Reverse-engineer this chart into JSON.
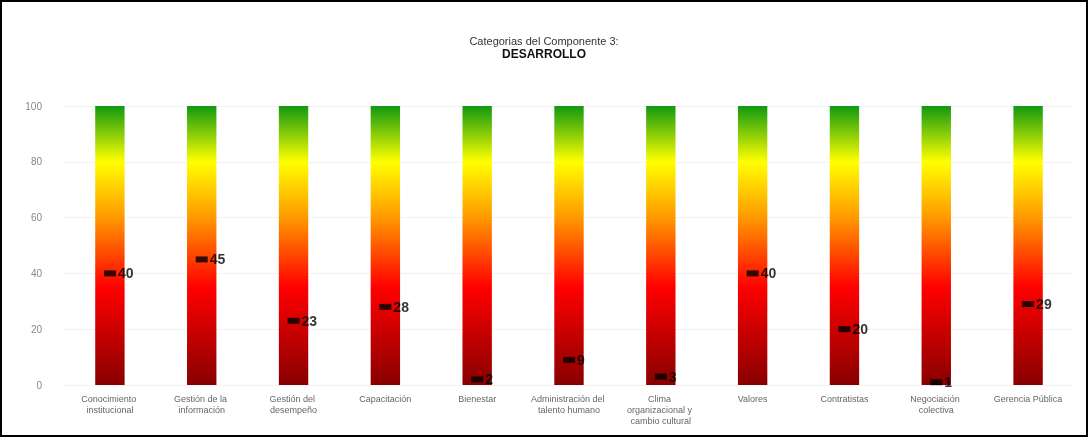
{
  "chart_data": {
    "type": "bar",
    "title": "Categorias del Componente 3:",
    "subtitle": "DESARROLLO",
    "categories": [
      "Conocimiento institucional",
      "Gestión de la información",
      "Gestión del desempeño",
      "Capacitación",
      "Bienestar",
      "Administración del talento humano",
      "Clima organizacional y cambio cultural",
      "Valores",
      "Contratistas",
      "Negociación colectiva",
      "Gerencia Pública"
    ],
    "series": [
      {
        "values": [
          100,
          100,
          100,
          100,
          100,
          100,
          100,
          100,
          100,
          100,
          100
        ]
      },
      {
        "type": "scatter",
        "color": "#000000",
        "marker": "square",
        "data_labels": true,
        "values": [
          40,
          45,
          23,
          28,
          2,
          9,
          3,
          40,
          20,
          1,
          29
        ]
      }
    ],
    "ylim": [
      0,
      100
    ],
    "yticks": [
      0,
      20,
      40,
      60,
      80,
      100
    ],
    "grid": "y"
  }
}
